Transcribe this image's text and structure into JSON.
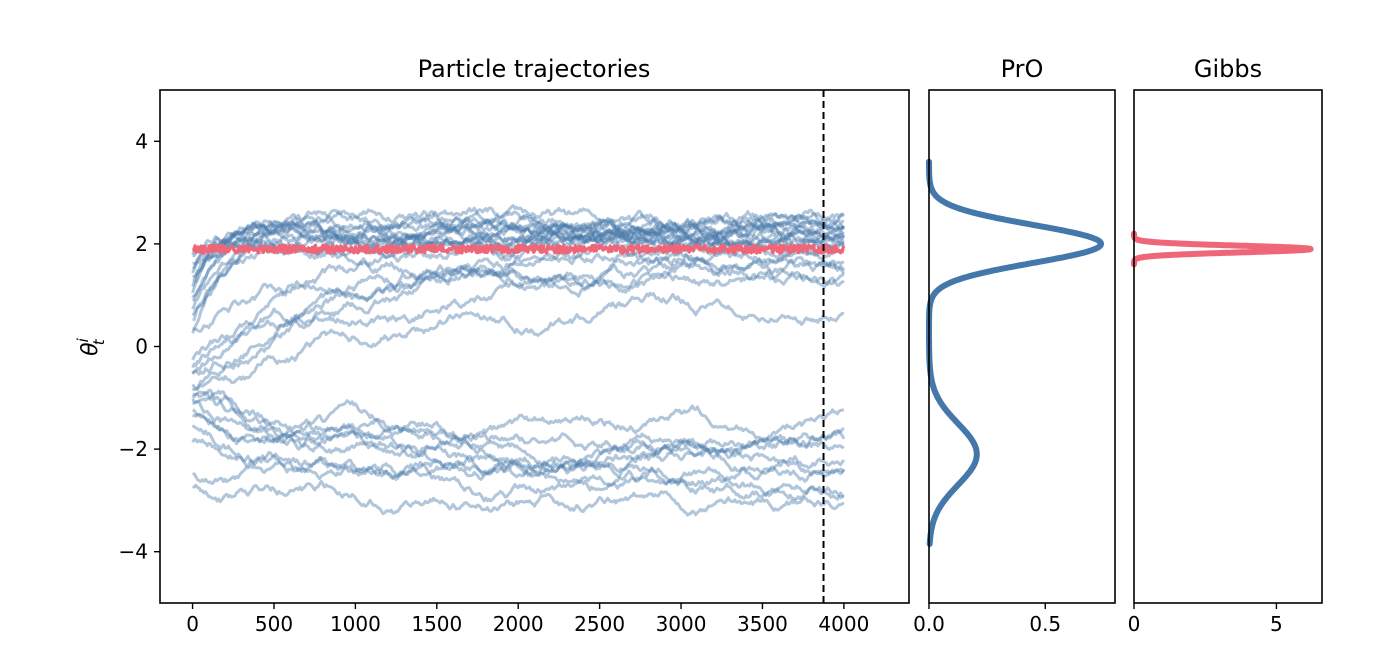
{
  "chart_data": [
    {
      "type": "line",
      "title": "Particle trajectories",
      "ylabel": "θ_t^i",
      "ylabel_main": "θ",
      "ylabel_sup": "i",
      "ylabel_sub": "t",
      "xlim": [
        -200,
        4400
      ],
      "ylim": [
        -5,
        5
      ],
      "x_ticks": [
        0,
        500,
        1000,
        1500,
        2000,
        2500,
        3000,
        3500,
        4000
      ],
      "y_ticks": [
        -4,
        -2,
        0,
        2,
        4
      ],
      "y_tick_labels": [
        "−4",
        "−2",
        "0",
        "2",
        "4"
      ],
      "vline_x": 3875,
      "grid": false,
      "colors": {
        "particles": "#4477aa",
        "gibbs_series": "#ee6677"
      },
      "particles": [
        {
          "start": 1.8,
          "settle": 2.25,
          "speed": 0.08
        },
        {
          "start": 1.5,
          "settle": 2.2,
          "speed": 0.06
        },
        {
          "start": 1.2,
          "settle": 2.1,
          "speed": 0.07
        },
        {
          "start": 0.9,
          "settle": 2.3,
          "speed": 0.05
        },
        {
          "start": 1.6,
          "settle": 2.0,
          "speed": 0.09
        },
        {
          "start": 0.6,
          "settle": 2.15,
          "speed": 0.05
        },
        {
          "start": 1.1,
          "settle": 2.35,
          "speed": 0.06
        },
        {
          "start": 0.4,
          "settle": 2.05,
          "speed": 0.04
        },
        {
          "start": 1.3,
          "settle": 2.2,
          "speed": 0.07
        },
        {
          "start": 0.2,
          "settle": 2.25,
          "speed": 0.04
        },
        {
          "start": 1.7,
          "settle": 1.95,
          "speed": 0.08
        },
        {
          "start": 0.8,
          "settle": 2.1,
          "speed": 0.06
        },
        {
          "start": 1.0,
          "settle": 2.4,
          "speed": 0.05
        },
        {
          "start": 0.5,
          "settle": 2.2,
          "speed": 0.05
        },
        {
          "start": 1.4,
          "settle": 2.3,
          "speed": 0.07
        },
        {
          "start": 0.3,
          "settle": 1.7,
          "speed": 0.02
        },
        {
          "start": -0.5,
          "settle": 1.5,
          "speed": 0.012
        },
        {
          "start": -0.3,
          "settle": 1.7,
          "speed": 0.015
        },
        {
          "start": -0.6,
          "settle": 1.3,
          "speed": 0.01
        },
        {
          "start": -0.4,
          "settle": 1.4,
          "speed": 0.012
        },
        {
          "start": -0.8,
          "settle": 1.0,
          "speed": 0.008
        },
        {
          "start": -0.9,
          "settle": 1.8,
          "speed": 0.01
        },
        {
          "start": -1.0,
          "settle": -1.6,
          "speed": 0.02
        },
        {
          "start": -1.1,
          "settle": -1.9,
          "speed": 0.02
        },
        {
          "start": -0.9,
          "settle": -2.0,
          "speed": 0.02
        },
        {
          "start": -1.3,
          "settle": -2.2,
          "speed": 0.015
        },
        {
          "start": -1.2,
          "settle": -1.8,
          "speed": 0.02
        },
        {
          "start": -1.0,
          "settle": -2.3,
          "speed": 0.015
        },
        {
          "start": -1.5,
          "settle": -2.5,
          "speed": 0.012
        },
        {
          "start": -1.9,
          "settle": -2.6,
          "speed": 0.01
        },
        {
          "start": -2.5,
          "settle": -2.9,
          "speed": 0.01
        },
        {
          "start": -2.7,
          "settle": -3.0,
          "speed": 0.01
        }
      ],
      "series": [
        {
          "x_range": [
            0,
            4000
          ],
          "level": 1.9,
          "noise": 0.08
        }
      ]
    },
    {
      "type": "line",
      "title": "PrO",
      "title_color": "#4477aa",
      "xlim": [
        0,
        0.8
      ],
      "ylim": [
        -5,
        5
      ],
      "x_ticks": [
        0.0,
        0.5
      ],
      "x_tick_labels": [
        "0.0",
        "0.5"
      ],
      "color": "#4477aa",
      "orientation": "vertical-density",
      "components": [
        {
          "mean": 2.0,
          "sd": 0.37,
          "weight": 0.72
        },
        {
          "mean": -2.1,
          "sd": 0.6,
          "weight": 0.2
        }
      ],
      "y_range": [
        -3.85,
        3.6
      ],
      "peak_value": 0.74
    },
    {
      "type": "line",
      "title": "Gibbs",
      "title_color": "#ee6677",
      "xlim": [
        0,
        6.6
      ],
      "ylim": [
        -5,
        5
      ],
      "x_ticks": [
        0,
        5
      ],
      "x_tick_labels": [
        "0",
        "5"
      ],
      "color": "#ee6677",
      "orientation": "vertical-density",
      "components": [
        {
          "mean": 1.9,
          "sd": 0.065,
          "weight": 1.0
        }
      ],
      "y_range": [
        1.6,
        2.2
      ],
      "peak_value": 6.2
    }
  ]
}
